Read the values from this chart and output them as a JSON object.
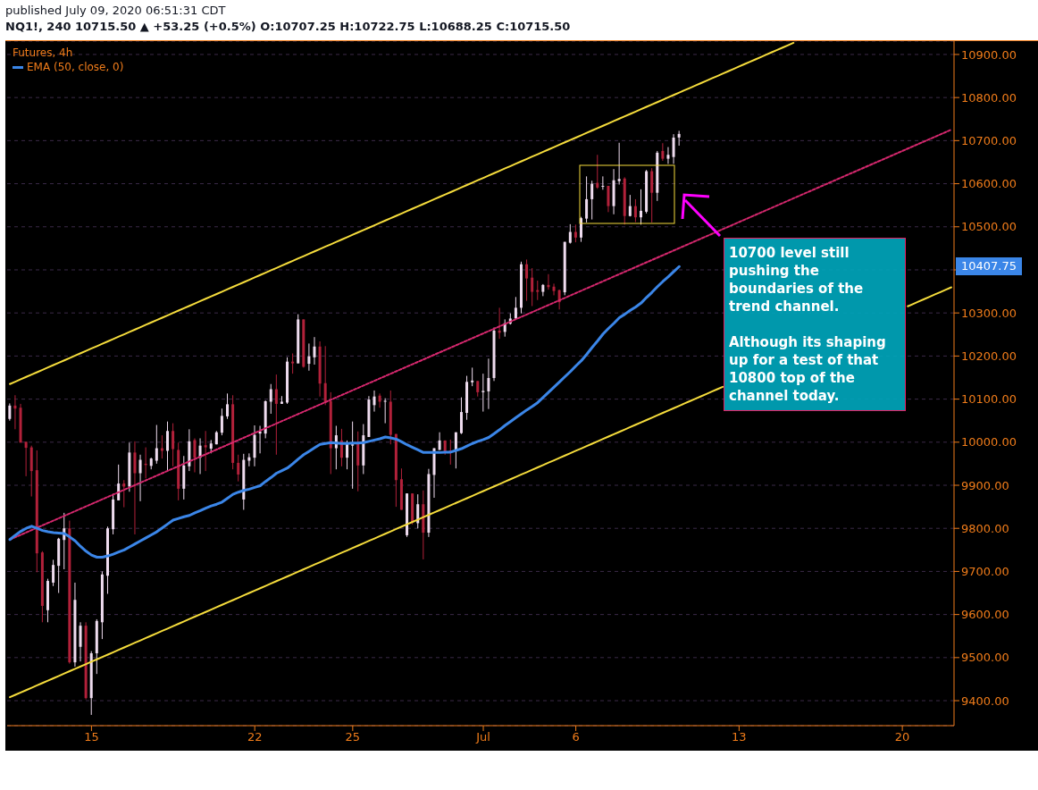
{
  "chart_data": {
    "type": "candlestick",
    "title": "Futures, 4h",
    "subtitle": "NQ1!, 240  10715.50 ▲ +53.25 (+0.5%) O:10707.25 H:10722.75 L:10688.25 C:10715.50",
    "annotations": [
      "published July 09, 2020 06:51:31 CDT",
      "10700 level still pushing the boundaries of the trend channel.",
      "Although its shaping up for a test of that 10800 top of the channel today.",
      "10407.75"
    ],
    "categories": [
      null,
      null,
      null,
      null,
      null,
      null,
      null,
      null,
      null,
      null,
      null,
      null,
      null,
      null,
      null,
      "15",
      null,
      null,
      null,
      null,
      null,
      null,
      null,
      null,
      null,
      null,
      null,
      null,
      null,
      null,
      null,
      null,
      null,
      null,
      null,
      null,
      null,
      null,
      null,
      null,
      null,
      null,
      null,
      null,
      null,
      "22",
      null,
      null,
      null,
      null,
      null,
      null,
      null,
      null,
      null,
      null,
      null,
      null,
      null,
      null,
      null,
      null,
      null,
      "25",
      null,
      null,
      null,
      null,
      null,
      null,
      null,
      null,
      null,
      null,
      null,
      null,
      null,
      null,
      null,
      null,
      null,
      null,
      null,
      null,
      null,
      null,
      null,
      "Jul",
      null,
      null,
      null,
      null,
      null,
      null,
      null,
      null,
      null,
      null,
      null,
      null,
      null,
      null,
      null,
      null,
      "6",
      null,
      null,
      null,
      null,
      null,
      null,
      null,
      null,
      null,
      null,
      null,
      null,
      null,
      null,
      null,
      null,
      null,
      null,
      null,
      null,
      null,
      null,
      null,
      null,
      null,
      null,
      null,
      null,
      null,
      "13",
      null,
      null,
      null,
      null,
      null,
      null,
      null,
      null,
      null,
      null,
      null,
      null,
      null,
      null,
      null,
      null,
      null,
      null,
      null,
      null,
      null,
      null,
      null,
      null,
      null,
      null,
      null,
      null,
      null,
      "20",
      null,
      null,
      null,
      null,
      null,
      null,
      null,
      null,
      null
    ],
    "ohlc": [
      [
        10054,
        10090,
        10050,
        10085
      ],
      [
        10085,
        10109,
        10030,
        10078
      ],
      [
        10080,
        10089,
        9999,
        9999
      ],
      [
        10001,
        10001,
        9921,
        9987
      ],
      [
        9988,
        9992,
        9874,
        9933
      ],
      [
        9935,
        9981,
        9698,
        9742
      ],
      [
        9744,
        9747,
        9582,
        9620
      ],
      [
        9610,
        9683,
        9582,
        9678
      ],
      [
        9674,
        9727,
        9666,
        9715
      ],
      [
        9713,
        9778,
        9650,
        9776
      ],
      [
        9773,
        9836,
        9705,
        9800
      ],
      [
        9800,
        9818,
        9486,
        9489
      ],
      [
        9489,
        9674,
        9479,
        9634
      ],
      [
        9525,
        9582,
        9491,
        9574
      ],
      [
        9574,
        9582,
        9403,
        9406
      ],
      [
        9406,
        9515,
        9367,
        9510
      ],
      [
        9510,
        9589,
        9462,
        9585
      ],
      [
        9582,
        9700,
        9543,
        9693
      ],
      [
        9690,
        9804,
        9648,
        9800
      ],
      [
        9798,
        9880,
        9786,
        9867
      ],
      [
        9865,
        9948,
        9865,
        9904
      ],
      [
        9904,
        9912,
        9849,
        9897
      ],
      [
        9897,
        9999,
        9885,
        9976
      ],
      [
        9976,
        10002,
        9786,
        9928
      ],
      [
        9928,
        9971,
        9863,
        9959
      ],
      [
        9950,
        9988,
        9916,
        9947
      ],
      [
        9945,
        9964,
        9937,
        9962
      ],
      [
        9957,
        10040,
        9950,
        9986
      ],
      [
        9986,
        10016,
        9962,
        9980
      ],
      [
        9980,
        10048,
        9935,
        10026
      ],
      [
        10026,
        10044,
        9944,
        9984
      ],
      [
        9982,
        9999,
        9865,
        9892
      ],
      [
        9892,
        9968,
        9867,
        9946
      ],
      [
        9944,
        10030,
        9933,
        10002
      ],
      [
        10005,
        10009,
        9930,
        9964
      ],
      [
        9964,
        10009,
        9926,
        9992
      ],
      [
        9993,
        10026,
        9933,
        9988
      ],
      [
        9985,
        10005,
        9974,
        9997
      ],
      [
        9995,
        10026,
        9995,
        10023
      ],
      [
        10022,
        10078,
        10016,
        10061
      ],
      [
        10060,
        10113,
        10054,
        10088
      ],
      [
        10088,
        10109,
        9937,
        9952
      ],
      [
        9952,
        9971,
        9909,
        9925
      ],
      [
        9867,
        9973,
        9843,
        9959
      ],
      [
        9957,
        9974,
        9944,
        9965
      ],
      [
        9964,
        10039,
        9944,
        10017
      ],
      [
        10020,
        10038,
        9974,
        10025
      ],
      [
        10020,
        10097,
        10009,
        10095
      ],
      [
        10094,
        10135,
        10066,
        10123
      ],
      [
        10123,
        10157,
        9971,
        10089
      ],
      [
        10089,
        10107,
        10089,
        10094
      ],
      [
        10092,
        10197,
        10089,
        10187
      ],
      [
        10187,
        10206,
        10159,
        10183
      ],
      [
        10183,
        10297,
        10183,
        10285
      ],
      [
        10285,
        10285,
        10173,
        10175
      ],
      [
        10182,
        10229,
        10166,
        10199
      ],
      [
        10197,
        10244,
        10180,
        10222
      ],
      [
        10222,
        10234,
        10106,
        10136
      ],
      [
        10137,
        10223,
        10086,
        10093
      ],
      [
        10095,
        10116,
        9926,
        9986
      ],
      [
        9986,
        10038,
        9937,
        10016
      ],
      [
        10004,
        10031,
        9944,
        9964
      ],
      [
        9964,
        10004,
        9937,
        9997
      ],
      [
        9992,
        10048,
        9892,
        9995
      ],
      [
        9999,
        10025,
        9886,
        9946
      ],
      [
        9946,
        10042,
        9926,
        10016
      ],
      [
        10012,
        10107,
        10012,
        10099
      ],
      [
        10086,
        10120,
        10071,
        10106
      ],
      [
        10108,
        10113,
        10080,
        10094
      ],
      [
        10094,
        10102,
        10044,
        10096
      ],
      [
        10094,
        10120,
        9995,
        10017
      ],
      [
        10019,
        10019,
        9850,
        9912
      ],
      [
        9914,
        9939,
        9843,
        9843
      ],
      [
        9784,
        9881,
        9780,
        9881
      ],
      [
        9881,
        9881,
        9809,
        9814
      ],
      [
        9812,
        9879,
        9800,
        9856
      ],
      [
        9856,
        9888,
        9728,
        9790
      ],
      [
        9790,
        9938,
        9780,
        9926
      ],
      [
        9924,
        9986,
        9871,
        9986
      ],
      [
        9982,
        10023,
        9982,
        10004
      ],
      [
        10004,
        10004,
        9971,
        9978
      ],
      [
        9981,
        10006,
        9948,
        9976
      ],
      [
        9981,
        10023,
        9939,
        10023
      ],
      [
        10021,
        10104,
        10019,
        10070
      ],
      [
        10068,
        10154,
        10052,
        10140
      ],
      [
        10139,
        10173,
        10130,
        10143
      ],
      [
        10142,
        10142,
        10106,
        10116
      ],
      [
        10116,
        10159,
        10071,
        10119
      ],
      [
        10118,
        10194,
        10077,
        10149
      ],
      [
        10149,
        10266,
        10142,
        10259
      ],
      [
        10259,
        10312,
        10240,
        10254
      ],
      [
        10256,
        10285,
        10245,
        10276
      ],
      [
        10275,
        10299,
        10273,
        10287
      ],
      [
        10287,
        10337,
        10285,
        10312
      ],
      [
        10312,
        10419,
        10299,
        10413
      ],
      [
        10413,
        10424,
        10328,
        10380
      ],
      [
        10382,
        10404,
        10316,
        10349
      ],
      [
        10353,
        10375,
        10330,
        10349
      ],
      [
        10349,
        10367,
        10339,
        10365
      ],
      [
        10365,
        10390,
        10354,
        10360
      ],
      [
        10361,
        10368,
        10341,
        10351
      ],
      [
        10353,
        10354,
        10308,
        10325
      ],
      [
        10348,
        10465,
        10341,
        10465
      ],
      [
        10463,
        10506,
        10461,
        10488
      ],
      [
        10488,
        10505,
        10464,
        10475
      ],
      [
        10475,
        10523,
        10465,
        10520
      ],
      [
        10519,
        10617,
        10510,
        10564
      ],
      [
        10564,
        10607,
        10517,
        10600
      ],
      [
        10602,
        10667,
        10588,
        10591
      ],
      [
        10593,
        10617,
        10586,
        10595
      ],
      [
        10595,
        10595,
        10534,
        10548
      ],
      [
        10548,
        10634,
        10529,
        10608
      ],
      [
        10606,
        10695,
        10598,
        10611
      ],
      [
        10612,
        10615,
        10505,
        10525
      ],
      [
        10525,
        10574,
        10524,
        10548
      ],
      [
        10548,
        10564,
        10511,
        10522
      ],
      [
        10522,
        10587,
        10505,
        10537
      ],
      [
        10535,
        10632,
        10531,
        10629
      ],
      [
        10629,
        10636,
        10510,
        10579
      ],
      [
        10579,
        10676,
        10560,
        10672
      ],
      [
        10676,
        10694,
        10653,
        10658
      ],
      [
        10658,
        10685,
        10646,
        10667
      ],
      [
        10662,
        10715,
        10646,
        10707
      ],
      [
        10707.25,
        10722.75,
        10688.25,
        10715.5
      ],
      null,
      null,
      null,
      null,
      null,
      null,
      null,
      null,
      null,
      null,
      null,
      null,
      null,
      null,
      null,
      null,
      null,
      null,
      null,
      null,
      null,
      null,
      null,
      null,
      null,
      null,
      null,
      null,
      null,
      null,
      null,
      null,
      null,
      null,
      null,
      null,
      null,
      null,
      null,
      null,
      null,
      null,
      null,
      null,
      null,
      null,
      null,
      null,
      null,
      null
    ],
    "series": [
      {
        "type": "line",
        "color": "#f5dc3c",
        "values": [
          10135,
          10140.5,
          10146,
          10151.5,
          10157,
          10162.5,
          10168,
          10173.5,
          10179,
          10184.5,
          10190,
          10195.5,
          10201,
          10206.5,
          10212,
          10217.5,
          10223,
          10228.5,
          10234,
          10239.5,
          10245,
          10250.5,
          10256,
          10261.5,
          10267,
          10272.5,
          10278,
          10283.5,
          10289,
          10294.5,
          10300,
          10305.5,
          10311,
          10316.5,
          10322,
          10327.5,
          10333,
          10338.5,
          10344,
          10349.5,
          10355,
          10360.5,
          10366,
          10371.5,
          10377,
          10382.5,
          10388,
          10393.5,
          10399,
          10404.5,
          10410,
          10415.5,
          10421,
          10426.5,
          10432,
          10437.5,
          10443,
          10448.5,
          10454,
          10459.5,
          10465,
          10470.5,
          10476,
          10481.5,
          10487,
          10492.5,
          10498,
          10503.5,
          10509,
          10514.5,
          10520,
          10525.5,
          10531,
          10536.5,
          10542,
          10547.5,
          10553,
          10558.5,
          10564,
          10569.5,
          10575,
          10580.5,
          10586,
          10591.5,
          10597,
          10602.5,
          10608,
          10613.5,
          10619,
          10624.5,
          10630,
          10635.5,
          10641,
          10646.5,
          10652,
          10657.5,
          10663,
          10668.5,
          10674,
          10679.5,
          10685,
          10690.5,
          10696,
          10701.5,
          10707,
          10712.5,
          10718,
          10723.5,
          10729,
          10734.5,
          10740,
          10745.5,
          10751,
          10756.5,
          10762,
          10767.5,
          10773,
          10778.5,
          10784,
          10789.5,
          10795,
          10800.5,
          10806,
          10811.5,
          10817,
          10822.5,
          10828,
          10833.5,
          10839,
          10844.5,
          10850,
          10855.5,
          10861,
          10866.5,
          10872,
          10877.5,
          10883,
          10888.5,
          10894,
          10899.5,
          10905,
          10910.5,
          10916,
          10921.5,
          10927,
          null,
          null,
          null,
          null,
          null,
          null,
          null,
          null,
          null,
          null,
          null,
          null,
          null,
          null,
          null,
          null,
          null,
          null,
          null,
          null,
          null,
          null,
          null,
          null,
          null,
          null,
          null,
          null,
          null
        ]
      },
      {
        "type": "line",
        "color": "#f5dc3c",
        "values": [
          9408,
          9413.5,
          9419,
          9424.5,
          9430,
          9435.5,
          9441,
          9446.5,
          9452,
          9457.5,
          9463,
          9468.5,
          9474,
          9479.5,
          9485,
          9490.5,
          9496,
          9501.5,
          9507,
          9512.5,
          9518,
          9523.5,
          9529,
          9534.5,
          9540,
          9545.5,
          9551,
          9556.5,
          9562,
          9567.5,
          9573,
          9578.5,
          9584,
          9589.5,
          9595,
          9600.5,
          9606,
          9611.5,
          9617,
          9622.5,
          9628,
          9633.5,
          9639,
          9644.5,
          9650,
          9655.5,
          9661,
          9666.5,
          9672,
          9677.5,
          9683,
          9688.5,
          9694,
          9699.5,
          9705,
          9710.5,
          9716,
          9721.5,
          9727,
          9732.5,
          9738,
          9743.5,
          9749,
          9754.5,
          9760,
          9765.5,
          9771,
          9776.5,
          9782,
          9787.5,
          9793,
          9798.5,
          9804,
          9809.5,
          9815,
          9820.5,
          9826,
          9831.5,
          9837,
          9842.5,
          9848,
          9853.5,
          9859,
          9864.5,
          9870,
          9875.5,
          9881,
          9886.5,
          9892,
          9897.5,
          9903,
          9908.5,
          9914,
          9919.5,
          9925,
          9930.5,
          9936,
          9941.5,
          9947,
          9952.5,
          9958,
          9963.5,
          9969,
          9974.5,
          9980,
          9985.5,
          9991,
          9996.5,
          10002,
          10007.5,
          10013,
          10018.5,
          10024,
          10029.5,
          10035,
          10040.5,
          10046,
          10051.5,
          10057,
          10062.5,
          10068,
          10073.5,
          10079,
          10084.5,
          10090,
          10095.5,
          10101,
          10106.5,
          10112,
          10117.5,
          10123,
          10128.5,
          null,
          null,
          null,
          null,
          null,
          null,
          null,
          null,
          null,
          null,
          null,
          null,
          null,
          null,
          null,
          null,
          null,
          null,
          null,
          null,
          null,
          null,
          null,
          null,
          null,
          null,
          null,
          null,
          null,
          null,
          null,
          null,
          null,
          10315.5,
          10321,
          10326.5,
          10332,
          10337.5,
          10343,
          10348.5,
          10354,
          10359.5
        ]
      },
      {
        "type": "line",
        "color": "#d6286e",
        "line_style": "dashed",
        "values": [
          9774,
          9779.5,
          9785,
          9790.5,
          9796,
          9801.5,
          9807,
          9812.5,
          9818,
          9823.5,
          9829,
          9834.5,
          9840,
          9845.5,
          9851,
          9856.5,
          9862,
          9867.5,
          9873,
          9878.5,
          9884,
          9889.5,
          9895,
          9900.5,
          9906,
          9911.5,
          9917,
          9922.5,
          9928,
          9933.5,
          9939,
          9944.5,
          9950,
          9955.5,
          9961,
          9966.5,
          9972,
          9977.5,
          9983,
          9988.5,
          9994,
          9999.5,
          10005,
          10010.5,
          10016,
          10021.5,
          10027,
          10032.5,
          10038,
          10043.5,
          10049,
          10054.5,
          10060,
          10065.5,
          10071,
          10076.5,
          10082,
          10087.5,
          10093,
          10098.5,
          10104,
          10109.5,
          10115,
          10120.5,
          10126,
          10131.5,
          10137,
          10142.5,
          10148,
          10153.5,
          10159,
          10164.5,
          10170,
          10175.5,
          10181,
          10186.5,
          10192,
          10197.5,
          10203,
          10208.5,
          10214,
          10219.5,
          10225,
          10230.5,
          10236,
          10241.5,
          10247,
          10252.5,
          10258,
          10263.5,
          10269,
          10274.5,
          10280,
          10285.5,
          10291,
          10296.5,
          10302,
          10307.5,
          10313,
          10318.5,
          10324,
          10329.5,
          10335,
          10340.5,
          10346,
          10351.5,
          10357,
          10362.5,
          10368,
          10373.5,
          10379,
          10384.5,
          10390,
          10395.5,
          10401,
          10406.5,
          10412,
          10417.5,
          10423,
          10428.5,
          10434,
          10439.5,
          10445,
          10450.5,
          10456,
          10461.5,
          10467,
          10472.5,
          10478,
          10483.5,
          10489,
          10494.5,
          10500,
          10505.5,
          10511,
          10516.5,
          10522,
          10527.5,
          10533,
          10538.5,
          10544,
          10549.5,
          10555,
          10560.5,
          10566,
          10571.5,
          10577,
          10582.5,
          10588,
          10593.5,
          10599,
          10604.5,
          10610,
          10615.5,
          10621,
          10626.5,
          10632,
          10637.5,
          10643,
          10648.5,
          10654,
          10659.5,
          10665,
          10670.5,
          10676,
          10681.5,
          10687,
          10692.5,
          10698,
          10703.5,
          10709,
          10714.5,
          10720,
          10725.5
        ]
      },
      {
        "type": "line",
        "name": "EMA (50, close, 0)",
        "color": "#3b86e8",
        "values": [
          9774,
          9784,
          9793,
          9800,
          9805,
          9800,
          9795,
          9792,
          9790,
          9789,
          9788,
          9780,
          9771,
          9758,
          9747,
          9738,
          9733,
          9733,
          9736,
          9740,
          9745,
          9750,
          9757,
          9764,
          9771,
          9778,
          9785,
          9792,
          9801,
          9810,
          9819,
          9823,
          9827,
          9830,
          9836,
          9841,
          9847,
          9852,
          9856,
          9861,
          9870,
          9879,
          9884,
          9888,
          9891,
          9895,
          9899,
          9909,
          9918,
          9928,
          9934,
          9940,
          9950,
          9961,
          9971,
          9979,
          9987,
          9995,
          9997,
          9999,
          9998,
          9997,
          9997,
          9998,
          9998,
          9999,
          10002,
          10005,
          10008,
          10012,
          10010,
          10007,
          10001,
          9994,
          9988,
          9982,
          9976,
          9976,
          9976,
          9976,
          9977,
          9977,
          9981,
          9985,
          9991,
          9997,
          10002,
          10006,
          10011,
          10020,
          10029,
          10039,
          10048,
          10057,
          10066,
          10075,
          10083,
          10092,
          10104,
          10116,
          10128,
          10140,
          10152,
          10164,
          10177,
          10189,
          10204,
          10220,
          10235,
          10251,
          10264,
          10276,
          10289,
          10297,
          10306,
          10314,
          10323,
          10336,
          10348,
          10361,
          10373,
          10384,
          10396,
          10407.75,
          null,
          null,
          null,
          null,
          null,
          null,
          null,
          null,
          null,
          null,
          null,
          null,
          null,
          null,
          null,
          null,
          null,
          null,
          null,
          null,
          null,
          null,
          null,
          null,
          null,
          null,
          null,
          null,
          null,
          null,
          null,
          null,
          null,
          null,
          null,
          null,
          null,
          null,
          null,
          null,
          null,
          null,
          null,
          null,
          null,
          null,
          null,
          null,
          null,
          null
        ]
      }
    ],
    "ylim": [
      9342,
      10931
    ],
    "yticks": [
      {
        "value": 9400,
        "label": "9400.00"
      },
      {
        "value": 9500,
        "label": "9500.00"
      },
      {
        "value": 9600,
        "label": "9600.00"
      },
      {
        "value": 9700,
        "label": "9700.00"
      },
      {
        "value": 9800,
        "label": "9800.00"
      },
      {
        "value": 9900,
        "label": "9900.00"
      },
      {
        "value": 10000,
        "label": "10000.00"
      },
      {
        "value": 10100,
        "label": "10100.00"
      },
      {
        "value": 10200,
        "label": "10200.00"
      },
      {
        "value": 10300,
        "label": "10300.00"
      },
      {
        "value": 10400,
        "label": null
      },
      {
        "value": 10500,
        "label": "10500.00"
      },
      {
        "value": 10600,
        "label": "10600.00"
      },
      {
        "value": 10700,
        "label": "10700.00"
      },
      {
        "value": 10800,
        "label": "10800.00"
      },
      {
        "value": 10900,
        "label": "10900.00"
      }
    ],
    "grid": "y",
    "legend": "top left"
  }
}
